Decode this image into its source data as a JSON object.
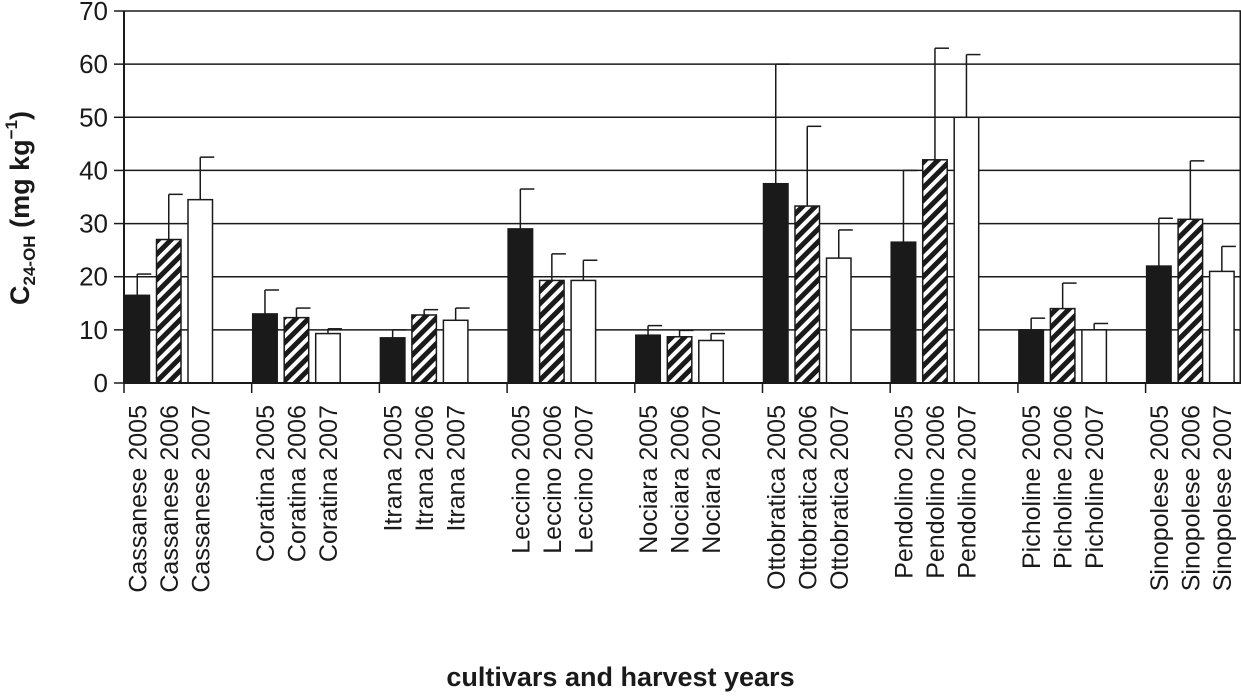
{
  "chart_data": {
    "type": "bar",
    "categories": [
      "Cassanese",
      "Coratina",
      "Itrana",
      "Leccino",
      "Nociara",
      "Ottobratica",
      "Pendolino",
      "Picholine",
      "Sinopolese"
    ],
    "years": [
      "2005",
      "2006",
      "2007"
    ],
    "series": [
      {
        "year": "2005",
        "fill": "solid-black",
        "values": [
          16.5,
          13,
          8.5,
          29,
          9,
          37.5,
          26.5,
          10,
          22
        ],
        "errors": [
          4,
          4.5,
          1.5,
          7.5,
          1.8,
          22.5,
          13.5,
          2.2,
          9
        ]
      },
      {
        "year": "2006",
        "fill": "black-white-diagonal-stripes",
        "values": [
          27,
          12.3,
          12.8,
          19.3,
          8.7,
          33.3,
          42,
          14,
          30.8
        ],
        "errors": [
          8.5,
          1.8,
          1,
          5,
          1.2,
          15,
          21,
          4.8,
          11
        ]
      },
      {
        "year": "2007",
        "fill": "white",
        "values": [
          34.5,
          9.3,
          11.8,
          19.3,
          8,
          23.5,
          50,
          10,
          21
        ],
        "errors": [
          8,
          0.9,
          2.3,
          3.8,
          1.3,
          5.3,
          11.8,
          1.2,
          4.7
        ]
      }
    ],
    "category_labels": [
      [
        "Cassanese 2005",
        "Cassanese 2006",
        "Cassanese 2007"
      ],
      [
        "Coratina 2005",
        "Coratina 2006",
        "Coratina 2007"
      ],
      [
        "Itrana 2005",
        "Itrana 2006",
        "Itrana 2007"
      ],
      [
        "Leccino 2005",
        "Leccino 2006",
        "Leccino 2007"
      ],
      [
        "Nociara 2005",
        "Nociara 2006",
        "Nociara 2007"
      ],
      [
        "Ottobratica 2005",
        "Ottobratica 2006",
        "Ottobratica 2007"
      ],
      [
        "Pendolino 2005",
        "Pendolino 2006",
        "Pendolino 2007"
      ],
      [
        "Picholine 2005",
        "Picholine 2006",
        "Picholine 2007"
      ],
      [
        "Sinopolese 2005",
        "Sinopolese 2006",
        "Sinopolese 2007"
      ]
    ],
    "ylim": [
      0,
      70
    ],
    "yticks": [
      0,
      10,
      20,
      30,
      40,
      50,
      60,
      70
    ],
    "ylabel": {
      "main": "C",
      "subscript": "24-OH",
      "unit_prefix": " (mg kg",
      "superscript": "−1",
      "unit_suffix": ")"
    },
    "xlabel": "cultivars and harvest years",
    "grid": "horizontal",
    "legend": "none",
    "colors": {
      "bar_dark": "#1a1a1a",
      "bar_light": "#ffffff",
      "grid": "#1a1a1a",
      "text": "#1a1a1a"
    }
  }
}
